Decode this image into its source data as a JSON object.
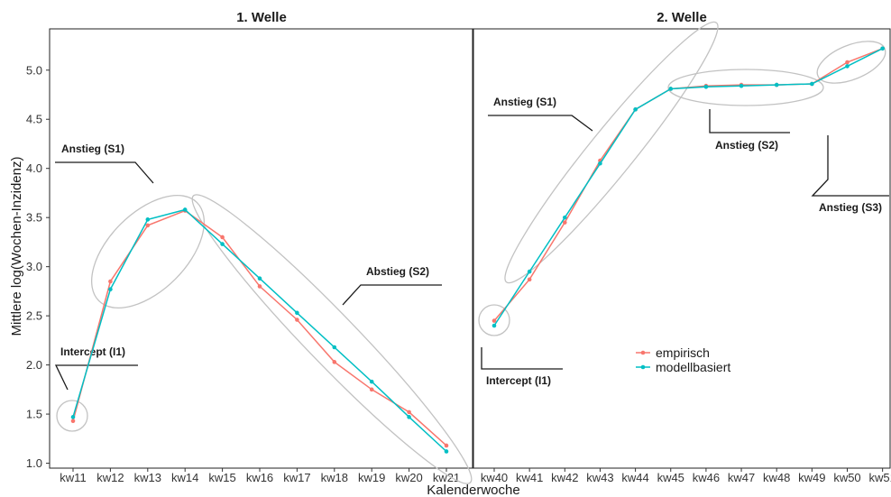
{
  "chart_data": {
    "type": "line",
    "ylabel": "Mittlere log(Wochen-Inzidenz)",
    "xlabel": "Kalenderwoche",
    "ylim": [
      0.95,
      5.42
    ],
    "yticks": [
      "1.0",
      "1.5",
      "2.0",
      "2.5",
      "3.0",
      "3.5",
      "4.0",
      "4.5",
      "5.0"
    ],
    "grid": false,
    "legend": {
      "placement": "inside-right-panel",
      "entries": [
        {
          "name": "empirisch",
          "color": "#F8766D"
        },
        {
          "name": "modellbasiert",
          "color": "#00BFC4"
        }
      ]
    },
    "panels": [
      {
        "title": "1. Welle",
        "categories": [
          "kw11",
          "kw12",
          "kw13",
          "kw14",
          "kw15",
          "kw16",
          "kw17",
          "kw18",
          "kw19",
          "kw20",
          "kw21"
        ],
        "series": [
          {
            "name": "empirisch",
            "color": "#F8766D",
            "values": [
              1.43,
              2.85,
              3.42,
              3.57,
              3.3,
              2.8,
              2.46,
              2.03,
              1.75,
              1.52,
              1.18
            ]
          },
          {
            "name": "modellbasiert",
            "color": "#00BFC4",
            "values": [
              1.47,
              2.77,
              3.48,
              3.58,
              3.23,
              2.88,
              2.53,
              2.18,
              1.83,
              1.47,
              1.12
            ]
          }
        ],
        "annotations": [
          {
            "label": "Anstieg (S1)"
          },
          {
            "label": "Abstieg (S2)"
          },
          {
            "label": "Intercept (I1)"
          }
        ]
      },
      {
        "title": "2. Welle",
        "categories": [
          "kw40",
          "kw41",
          "kw42",
          "kw43",
          "kw44",
          "kw45",
          "kw46",
          "kw47",
          "kw48",
          "kw49",
          "kw50",
          "kw51"
        ],
        "series": [
          {
            "name": "empirisch",
            "color": "#F8766D",
            "values": [
              2.45,
              2.87,
              3.45,
              4.08,
              4.6,
              4.81,
              4.84,
              4.85,
              4.85,
              4.86,
              5.08,
              5.22
            ]
          },
          {
            "name": "modellbasiert",
            "color": "#00BFC4",
            "values": [
              2.4,
              2.95,
              3.5,
              4.05,
              4.6,
              4.81,
              4.83,
              4.84,
              4.85,
              4.86,
              5.04,
              5.22
            ]
          }
        ],
        "annotations": [
          {
            "label": "Anstieg (S1)"
          },
          {
            "label": "Anstieg (S2)"
          },
          {
            "label": "Anstieg (S3)"
          },
          {
            "label": "Intercept (I1)"
          }
        ]
      }
    ]
  }
}
